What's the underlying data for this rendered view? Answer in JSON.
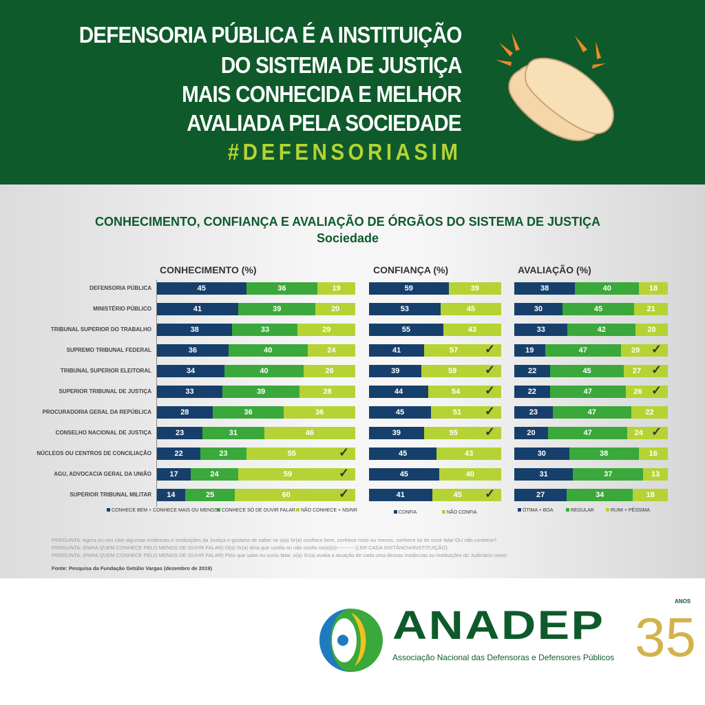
{
  "header": {
    "lines": [
      "DEFENSORIA PÚBLICA É A INSTITUIÇÃO",
      "DO SISTEMA DE  JUSTIÇA",
      "MAIS CONHECIDA E MELHOR",
      "AVALIADA PELA SOCIEDADE"
    ],
    "hashtag": "#DEFENSORIASIM"
  },
  "colors": {
    "navy": "#173f6b",
    "green": "#3aa83a",
    "lime": "#b5d334",
    "header_bg": "#0e5a2b"
  },
  "chart_data": [
    {
      "type": "bar",
      "stacked": true,
      "orientation": "horizontal",
      "title": "CONHECIMENTO, CONFIANÇA E AVALIAÇÃO DE ÓRGÃOS DO SISTEMA DE JUSTIÇA",
      "subtitle": "Sociedade",
      "section": "CONHECIMENTO (%)",
      "categories": [
        "DEFENSORIA PÚBLICA",
        "MINISTÉRIO PÚBLICO",
        "TRIBUNAL SUPERIOR DO TRABALHO",
        "SUPREMO TRIBUNAL FEDERAL",
        "TRIBUNAL SUPERIOR ELEITORAL",
        "SUPERIOR TRIBUNAL DE JUSTIÇA",
        "PROCURADORIA GERAL DA REPÚBLICA",
        "CONSELHO NACIONAL DE JUSTIÇA",
        "NÚCLEOS OU CENTROS DE CONCILIAÇÃO",
        "AGU, ADVOCACIA GERAL DA UNIÃO",
        "SUPERIOR TRIBUNAL MILITAR"
      ],
      "series": [
        {
          "name": "CONHECE BEM + CONHECE MAIS OU MENOS",
          "color": "#173f6b",
          "values": [
            45,
            41,
            38,
            36,
            34,
            33,
            28,
            23,
            22,
            17,
            14
          ]
        },
        {
          "name": "CONHECE SÓ DE OUVIR FALAR",
          "color": "#3aa83a",
          "values": [
            36,
            39,
            33,
            40,
            40,
            39,
            36,
            31,
            23,
            24,
            25
          ]
        },
        {
          "name": "NÃO CONHECE + NS/NR",
          "color": "#b5d334",
          "values": [
            19,
            20,
            29,
            24,
            26,
            28,
            36,
            46,
            55,
            59,
            60
          ]
        }
      ],
      "checked_rows": [
        8,
        9,
        10
      ]
    },
    {
      "type": "bar",
      "stacked": true,
      "orientation": "horizontal",
      "section": "CONFIANÇA (%)",
      "series": [
        {
          "name": "CONFIA",
          "color": "#173f6b",
          "values": [
            59,
            53,
            55,
            41,
            39,
            44,
            45,
            39,
            45,
            45,
            41
          ]
        },
        {
          "name": "NÃO CONFIA",
          "color": "#b5d334",
          "values": [
            39,
            45,
            43,
            57,
            59,
            54,
            51,
            55,
            43,
            40,
            45
          ]
        }
      ],
      "checked_rows": [
        3,
        4,
        5,
        6,
        7,
        10
      ]
    },
    {
      "type": "bar",
      "stacked": true,
      "orientation": "horizontal",
      "section": "AVALIAÇÃO  (%)",
      "series": [
        {
          "name": "ÓTIMA + BOA",
          "color": "#173f6b",
          "values": [
            38,
            30,
            33,
            19,
            22,
            22,
            23,
            20,
            30,
            31,
            27
          ]
        },
        {
          "name": "REGULAR",
          "color": "#3aa83a",
          "values": [
            40,
            45,
            42,
            47,
            45,
            47,
            47,
            47,
            38,
            37,
            34
          ]
        },
        {
          "name": "RUIM + PÉSSIMA",
          "color": "#b5d334",
          "values": [
            18,
            21,
            20,
            29,
            27,
            26,
            22,
            24,
            16,
            13,
            18
          ]
        }
      ],
      "checked_rows": [
        3,
        4,
        5,
        7
      ]
    }
  ],
  "notes": [
    "PERGUNTA: Agora eu vou citar algumas instâncias e instituições da Justiça e gostaria de saber se o(a) Sr(a) conhece bem, conhece mais ou menos, conhece só de ouvir falar  OU não conhece?",
    "PERGUNTA: (PARA QUEM CONHECE PELO MENOS DE OUVIR FALAR) O(a) Sr(a) diria que confia ou não confia no(a)(s)---------- (LER CADA INSTÂNCIA/INSTITUIÇÃO)",
    "PERGUNTA: (PARA QUEM CONHECE PELO MENOS DE OUVIR FALAR) Pelo que sabe ou ouviu falar, o(a) Sr(a) avalia a atuação de cada uma dessas instâncias ou instituições do Judiciário como:"
  ],
  "source": "Fonte: Pesquisa da Fundação Getúlio Vargas (dezembro de 2019)",
  "footer": {
    "brand": "ANADEP",
    "tagline": "Associação Nacional das Defensoras e Defensores Públicos",
    "anniversary": "35",
    "anos": "ANOS"
  },
  "icons": [
    "clapping-hands-icon",
    "anadep-logo"
  ]
}
